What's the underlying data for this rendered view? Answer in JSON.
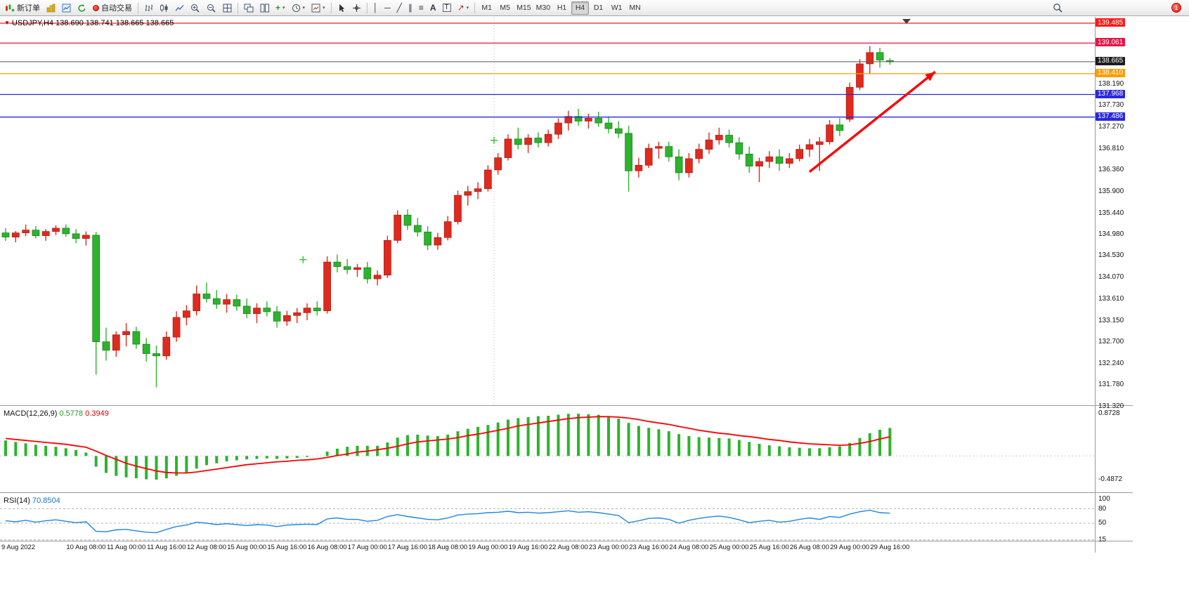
{
  "toolbar": {
    "new_order": "新订单",
    "autotrading": "自动交易",
    "text_tool": "A",
    "label_tool": "T",
    "badge_count": "1",
    "timeframes": [
      "M1",
      "M5",
      "M15",
      "M30",
      "H1",
      "H4",
      "D1",
      "W1",
      "MN"
    ],
    "active_timeframe": "H4",
    "glyphs": {
      "plus": "+",
      "caret": "▾",
      "vline": "│",
      "hline": "─",
      "trendline": "╱",
      "channel": "∥",
      "fibonacci": "≡",
      "arrow_tool": "↗"
    }
  },
  "chart_data": {
    "type": "candlestick",
    "title_symbol": "USDJPY,H4",
    "title_ohlc": "138.690 138.741 138.665 138.665",
    "one_click_glyph": "▼",
    "price_ticks": [
      138.19,
      137.73,
      137.27,
      136.81,
      136.36,
      135.9,
      135.44,
      134.98,
      134.53,
      134.07,
      133.61,
      133.15,
      132.7,
      132.24,
      131.78,
      131.32
    ],
    "lines": [
      {
        "price": 139.485,
        "color": "#ff1818"
      },
      {
        "price": 139.061,
        "color": "#e81246"
      },
      {
        "price": 138.41,
        "color": "#ff9c00"
      },
      {
        "price": 137.968,
        "color": "#2828dd"
      },
      {
        "price": 137.486,
        "color": "#2828dd"
      }
    ],
    "bid": {
      "price": 138.665,
      "box_color": "#1c1c1c",
      "line_color": "#555555"
    },
    "candles": [
      [
        135.02,
        135.12,
        134.85,
        134.93
      ],
      [
        134.93,
        135.06,
        134.82,
        135.02
      ],
      [
        135.02,
        135.2,
        134.95,
        135.08
      ],
      [
        135.08,
        135.16,
        134.9,
        134.96
      ],
      [
        134.96,
        135.1,
        134.85,
        135.05
      ],
      [
        135.05,
        135.18,
        134.97,
        135.12
      ],
      [
        135.12,
        135.2,
        134.94,
        135.0
      ],
      [
        135.0,
        135.1,
        134.8,
        134.9
      ],
      [
        134.9,
        135.05,
        134.75,
        134.97
      ],
      [
        134.97,
        135.04,
        132.0,
        132.7
      ],
      [
        132.7,
        133.0,
        132.3,
        132.52
      ],
      [
        132.52,
        132.92,
        132.38,
        132.85
      ],
      [
        132.85,
        133.1,
        132.6,
        132.92
      ],
      [
        132.92,
        133.02,
        132.55,
        132.65
      ],
      [
        132.65,
        132.78,
        132.28,
        132.45
      ],
      [
        132.45,
        132.62,
        131.73,
        132.4
      ],
      [
        132.4,
        132.92,
        132.32,
        132.8
      ],
      [
        132.8,
        133.35,
        132.7,
        133.22
      ],
      [
        133.22,
        133.48,
        133.05,
        133.36
      ],
      [
        133.36,
        133.9,
        133.26,
        133.72
      ],
      [
        133.72,
        133.96,
        133.54,
        133.62
      ],
      [
        133.62,
        133.8,
        133.4,
        133.5
      ],
      [
        133.5,
        133.72,
        133.32,
        133.6
      ],
      [
        133.6,
        133.7,
        133.36,
        133.46
      ],
      [
        133.46,
        133.62,
        133.2,
        133.3
      ],
      [
        133.3,
        133.52,
        133.1,
        133.42
      ],
      [
        133.42,
        133.56,
        133.24,
        133.34
      ],
      [
        133.34,
        133.46,
        133.0,
        133.14
      ],
      [
        133.14,
        133.36,
        133.04,
        133.26
      ],
      [
        133.26,
        133.42,
        133.1,
        133.32
      ],
      [
        133.32,
        133.52,
        133.16,
        133.42
      ],
      [
        133.42,
        133.56,
        133.26,
        133.36
      ],
      [
        133.36,
        134.52,
        133.3,
        134.4
      ],
      [
        134.4,
        134.56,
        134.18,
        134.3
      ],
      [
        134.3,
        134.46,
        134.14,
        134.24
      ],
      [
        134.24,
        134.36,
        134.08,
        134.28
      ],
      [
        134.28,
        134.4,
        133.94,
        134.04
      ],
      [
        134.04,
        134.22,
        133.9,
        134.12
      ],
      [
        134.12,
        134.96,
        134.06,
        134.86
      ],
      [
        134.86,
        135.5,
        134.8,
        135.4
      ],
      [
        135.4,
        135.52,
        135.08,
        135.18
      ],
      [
        135.18,
        135.34,
        134.94,
        135.04
      ],
      [
        135.04,
        135.16,
        134.65,
        134.76
      ],
      [
        134.76,
        135.02,
        134.66,
        134.92
      ],
      [
        134.92,
        135.38,
        134.86,
        135.26
      ],
      [
        135.26,
        135.92,
        135.2,
        135.82
      ],
      [
        135.82,
        136.02,
        135.6,
        135.9
      ],
      [
        135.9,
        136.1,
        135.74,
        135.96
      ],
      [
        135.96,
        136.46,
        135.9,
        136.36
      ],
      [
        136.36,
        136.72,
        136.26,
        136.62
      ],
      [
        136.62,
        137.12,
        136.56,
        137.02
      ],
      [
        137.02,
        137.26,
        136.8,
        136.9
      ],
      [
        136.9,
        137.12,
        136.72,
        137.04
      ],
      [
        137.04,
        137.16,
        136.84,
        136.94
      ],
      [
        136.94,
        137.22,
        136.86,
        137.12
      ],
      [
        137.12,
        137.46,
        137.02,
        137.36
      ],
      [
        137.36,
        137.62,
        137.2,
        137.5
      ],
      [
        137.5,
        137.66,
        137.3,
        137.4
      ],
      [
        137.4,
        137.56,
        137.24,
        137.46
      ],
      [
        137.46,
        137.6,
        137.28,
        137.36
      ],
      [
        137.36,
        137.5,
        137.14,
        137.24
      ],
      [
        137.24,
        137.4,
        137.04,
        137.14
      ],
      [
        137.14,
        137.3,
        135.9,
        136.34
      ],
      [
        136.34,
        136.62,
        136.2,
        136.46
      ],
      [
        136.46,
        136.92,
        136.4,
        136.82
      ],
      [
        136.82,
        136.96,
        136.6,
        136.86
      ],
      [
        136.86,
        136.96,
        136.54,
        136.64
      ],
      [
        136.64,
        136.8,
        136.14,
        136.3
      ],
      [
        136.3,
        136.72,
        136.2,
        136.6
      ],
      [
        136.6,
        136.92,
        136.5,
        136.8
      ],
      [
        136.8,
        137.16,
        136.7,
        137.0
      ],
      [
        137.0,
        137.26,
        136.9,
        137.1
      ],
      [
        137.1,
        137.22,
        136.84,
        136.94
      ],
      [
        136.94,
        137.06,
        136.58,
        136.7
      ],
      [
        136.7,
        136.86,
        136.3,
        136.44
      ],
      [
        136.44,
        136.62,
        136.1,
        136.54
      ],
      [
        136.54,
        136.76,
        136.4,
        136.64
      ],
      [
        136.64,
        136.8,
        136.34,
        136.5
      ],
      [
        136.5,
        136.72,
        136.4,
        136.6
      ],
      [
        136.6,
        136.9,
        136.54,
        136.8
      ],
      [
        136.8,
        137.02,
        136.64,
        136.9
      ],
      [
        136.9,
        137.06,
        136.34,
        136.96
      ],
      [
        136.96,
        137.42,
        136.9,
        137.32
      ],
      [
        137.32,
        137.46,
        137.08,
        137.2
      ],
      [
        137.44,
        138.22,
        137.38,
        138.12
      ],
      [
        138.12,
        138.72,
        138.06,
        138.62
      ],
      [
        138.62,
        139.0,
        138.4,
        138.86
      ],
      [
        138.86,
        138.96,
        138.54,
        138.7
      ],
      [
        138.69,
        138.741,
        138.6,
        138.665
      ]
    ],
    "x_labels": [
      {
        "i": 0,
        "t": "9 Aug 2022"
      },
      {
        "i": 8,
        "t": "10 Aug 08:00"
      },
      {
        "i": 12,
        "t": "11 Aug 00:00"
      },
      {
        "i": 16,
        "t": "11 Aug 16:00"
      },
      {
        "i": 20,
        "t": "12 Aug 08:00"
      },
      {
        "i": 24,
        "t": "15 Aug 00:00"
      },
      {
        "i": 28,
        "t": "15 Aug 16:00"
      },
      {
        "i": 32,
        "t": "16 Aug 08:00"
      },
      {
        "i": 36,
        "t": "17 Aug 00:00"
      },
      {
        "i": 40,
        "t": "17 Aug 16:00"
      },
      {
        "i": 44,
        "t": "18 Aug 08:00"
      },
      {
        "i": 48,
        "t": "19 Aug 00:00"
      },
      {
        "i": 52,
        "t": "19 Aug 16:00"
      },
      {
        "i": 56,
        "t": "22 Aug 08:00"
      },
      {
        "i": 60,
        "t": "23 Aug 00:00"
      },
      {
        "i": 64,
        "t": "23 Aug 16:00"
      },
      {
        "i": 68,
        "t": "24 Aug 08:00"
      },
      {
        "i": 72,
        "t": "25 Aug 00:00"
      },
      {
        "i": 76,
        "t": "25 Aug 16:00"
      },
      {
        "i": 80,
        "t": "26 Aug 08:00"
      },
      {
        "i": 84,
        "t": "29 Aug 00:00"
      },
      {
        "i": 88,
        "t": "29 Aug 16:00"
      }
    ],
    "arrow": {
      "from_index": 80,
      "from_price": 136.32,
      "to_index": 92.5,
      "to_price": 138.45,
      "color": "#ff0000"
    },
    "markers": [
      {
        "index": 29.6,
        "price": 134.45
      },
      {
        "index": 48.6,
        "price": 136.99
      }
    ],
    "vline_index": 48.6,
    "macd": {
      "label": "MACD(12,26,9)",
      "value": "0.5778",
      "signal_value": "0.3949",
      "axis": [
        {
          "v": 0.8728,
          "t": "0.8728"
        },
        {
          "v": -0.4872,
          "t": "-0.4872"
        }
      ],
      "hist": [
        0.32,
        0.29,
        0.26,
        0.23,
        0.21,
        0.19,
        0.16,
        0.12,
        0.07,
        -0.22,
        -0.35,
        -0.41,
        -0.44,
        -0.46,
        -0.48,
        -0.487,
        -0.46,
        -0.41,
        -0.34,
        -0.26,
        -0.19,
        -0.15,
        -0.11,
        -0.09,
        -0.07,
        -0.06,
        -0.05,
        -0.06,
        -0.05,
        -0.04,
        -0.02,
        0.0,
        0.09,
        0.15,
        0.19,
        0.21,
        0.21,
        0.21,
        0.28,
        0.38,
        0.43,
        0.44,
        0.42,
        0.41,
        0.44,
        0.51,
        0.56,
        0.6,
        0.64,
        0.69,
        0.75,
        0.78,
        0.8,
        0.82,
        0.83,
        0.85,
        0.87,
        0.872,
        0.86,
        0.85,
        0.82,
        0.77,
        0.68,
        0.62,
        0.58,
        0.55,
        0.51,
        0.45,
        0.41,
        0.39,
        0.38,
        0.37,
        0.36,
        0.33,
        0.29,
        0.25,
        0.22,
        0.2,
        0.18,
        0.17,
        0.16,
        0.16,
        0.18,
        0.2,
        0.27,
        0.37,
        0.47,
        0.54,
        0.5778
      ],
      "signal": [
        0.36,
        0.34,
        0.32,
        0.3,
        0.28,
        0.26,
        0.24,
        0.21,
        0.18,
        0.1,
        0.01,
        -0.07,
        -0.15,
        -0.21,
        -0.26,
        -0.31,
        -0.34,
        -0.35,
        -0.35,
        -0.33,
        -0.3,
        -0.27,
        -0.24,
        -0.21,
        -0.18,
        -0.16,
        -0.14,
        -0.12,
        -0.11,
        -0.09,
        -0.08,
        -0.06,
        -0.03,
        0.01,
        0.04,
        0.08,
        0.1,
        0.13,
        0.16,
        0.2,
        0.25,
        0.29,
        0.31,
        0.33,
        0.35,
        0.38,
        0.42,
        0.45,
        0.49,
        0.53,
        0.57,
        0.62,
        0.65,
        0.68,
        0.71,
        0.74,
        0.77,
        0.79,
        0.8,
        0.81,
        0.81,
        0.8,
        0.78,
        0.75,
        0.71,
        0.68,
        0.65,
        0.61,
        0.57,
        0.53,
        0.5,
        0.47,
        0.45,
        0.42,
        0.4,
        0.37,
        0.34,
        0.32,
        0.29,
        0.27,
        0.25,
        0.24,
        0.23,
        0.22,
        0.23,
        0.26,
        0.3,
        0.35,
        0.3949
      ]
    },
    "rsi": {
      "label": "RSI(14)",
      "value": "70.8504",
      "axis": [
        {
          "v": 100,
          "t": "100"
        },
        {
          "v": 80,
          "t": "80"
        },
        {
          "v": 50,
          "t": "50"
        },
        {
          "v": 15,
          "t": "15"
        }
      ],
      "levels": [
        80,
        50,
        15
      ],
      "values": [
        55,
        53,
        56,
        52,
        55,
        57,
        54,
        51,
        53,
        33,
        32,
        36,
        37,
        34,
        31,
        30,
        37,
        43,
        46,
        52,
        50,
        47,
        49,
        47,
        45,
        47,
        46,
        43,
        46,
        47,
        48,
        47,
        59,
        61,
        58,
        58,
        54,
        56,
        64,
        68,
        64,
        61,
        58,
        57,
        61,
        67,
        69,
        70,
        72,
        73,
        75,
        72,
        73,
        71,
        72,
        74,
        76,
        73,
        74,
        72,
        69,
        66,
        51,
        55,
        60,
        61,
        58,
        50,
        56,
        60,
        63,
        65,
        62,
        57,
        51,
        54,
        56,
        52,
        54,
        58,
        61,
        58,
        64,
        62,
        69,
        74,
        77,
        72,
        70.85
      ]
    }
  }
}
